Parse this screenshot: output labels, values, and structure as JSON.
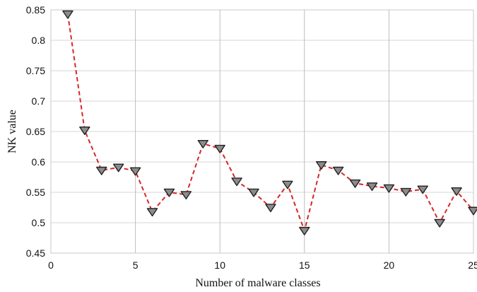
{
  "chart_data": {
    "type": "line",
    "title": "",
    "xlabel": "Number of malware classes",
    "ylabel": "NK value",
    "xlim": [
      0,
      25
    ],
    "ylim": [
      0.45,
      0.85
    ],
    "xticks": [
      0,
      5,
      10,
      15,
      20,
      25
    ],
    "xtick_labels": [
      "0",
      "5",
      "10",
      "15",
      "20",
      "25"
    ],
    "yticks": [
      0.45,
      0.5,
      0.55,
      0.6,
      0.65,
      0.7,
      0.75,
      0.8,
      0.85
    ],
    "ytick_labels": [
      "0.45",
      "0.5",
      "0.55",
      "0.6",
      "0.65",
      "0.7",
      "0.75",
      "0.8",
      "0.85"
    ],
    "grid": true,
    "series": [
      {
        "x": [
          1,
          2,
          3,
          4,
          5,
          6,
          7,
          8,
          9,
          10,
          11,
          12,
          13,
          14,
          15,
          16,
          17,
          18,
          19,
          20,
          21,
          22,
          23,
          24,
          25
        ],
        "values": [
          0.843,
          0.652,
          0.586,
          0.591,
          0.585,
          0.518,
          0.55,
          0.546,
          0.63,
          0.622,
          0.568,
          0.55,
          0.525,
          0.563,
          0.487,
          0.595,
          0.586,
          0.565,
          0.56,
          0.557,
          0.551,
          0.555,
          0.5,
          0.552,
          0.52
        ],
        "line_color": "#d62728",
        "line_style": "dashed",
        "marker": "triangle-down",
        "marker_fill": "#8c8c8c",
        "marker_edge": "#222222"
      }
    ]
  }
}
